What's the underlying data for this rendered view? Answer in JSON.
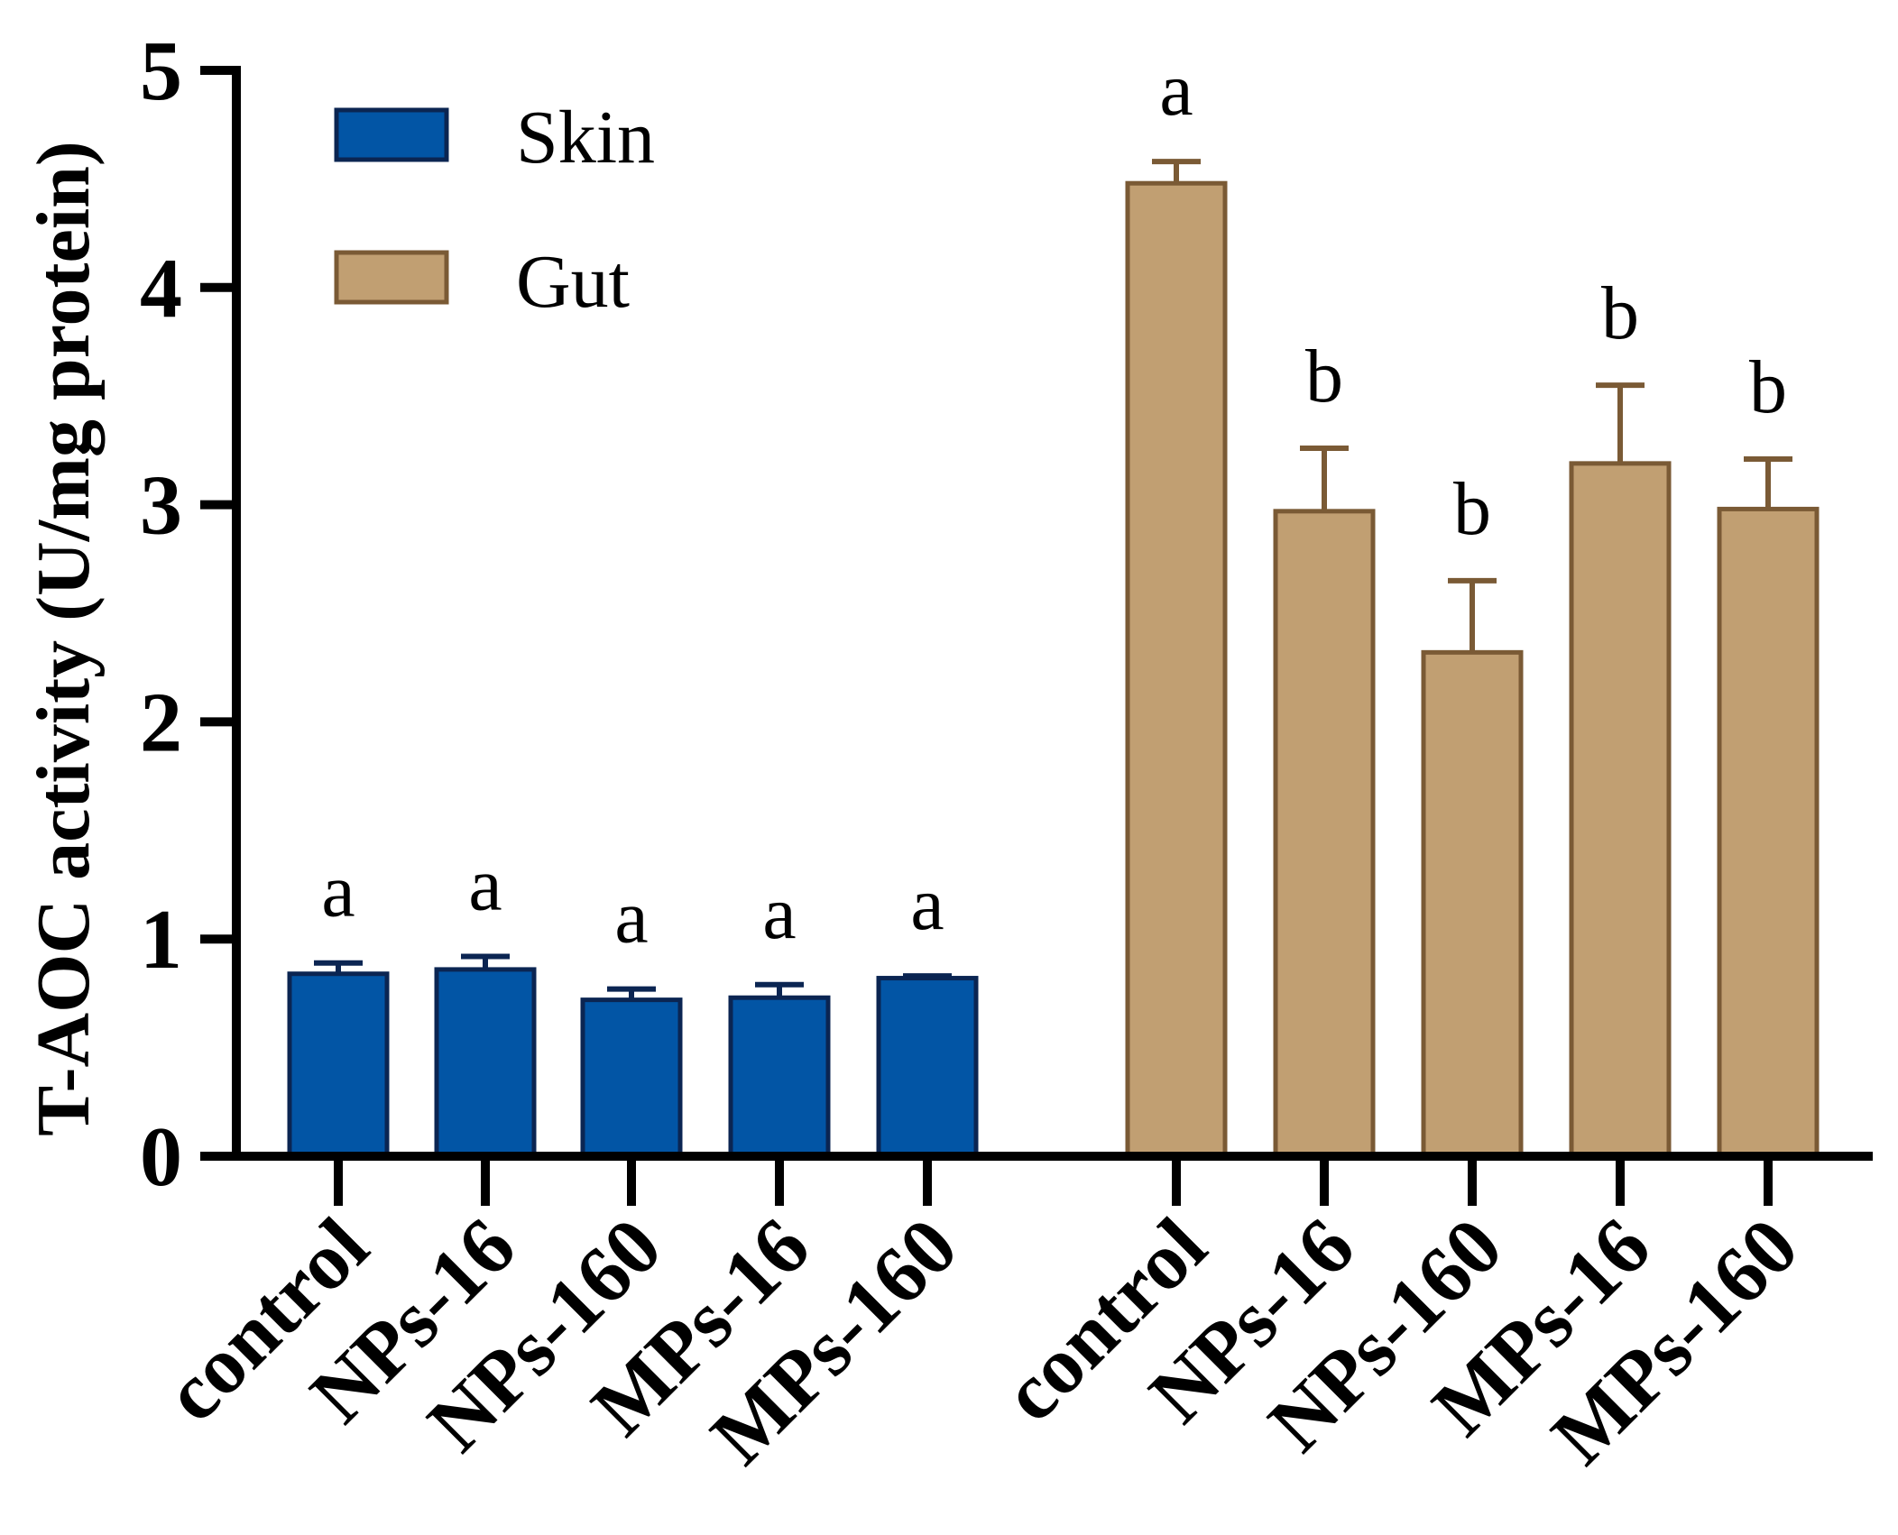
{
  "chart_data": {
    "type": "bar",
    "title": "",
    "xlabel": "",
    "ylabel": "T-AOC activity (U/mg protein)",
    "ylim": [
      0,
      5
    ],
    "yticks": [
      "0",
      "1",
      "2",
      "3",
      "4",
      "5"
    ],
    "legend_position": "top-left",
    "groups": [
      {
        "name": "Skin",
        "color": "#0255A5",
        "edge_color": "#0B2552",
        "categories": [
          "control",
          "NPs-16",
          "NPs-160",
          "MPs-16",
          "MPs-160"
        ],
        "values": [
          0.84,
          0.86,
          0.72,
          0.73,
          0.82
        ],
        "errors": [
          0.05,
          0.06,
          0.05,
          0.06,
          0.01
        ],
        "significance": [
          "a",
          "a",
          "a",
          "a",
          "a"
        ]
      },
      {
        "name": "Gut",
        "color": "#C19F72",
        "edge_color": "#7A5A35",
        "categories": [
          "control",
          "NPs-16",
          "NPs-160",
          "MPs-16",
          "MPs-160"
        ],
        "values": [
          4.48,
          2.97,
          2.32,
          3.19,
          2.98
        ],
        "errors": [
          0.1,
          0.29,
          0.33,
          0.36,
          0.23
        ],
        "significance": [
          "a",
          "b",
          "b",
          "b",
          "b"
        ]
      }
    ]
  }
}
